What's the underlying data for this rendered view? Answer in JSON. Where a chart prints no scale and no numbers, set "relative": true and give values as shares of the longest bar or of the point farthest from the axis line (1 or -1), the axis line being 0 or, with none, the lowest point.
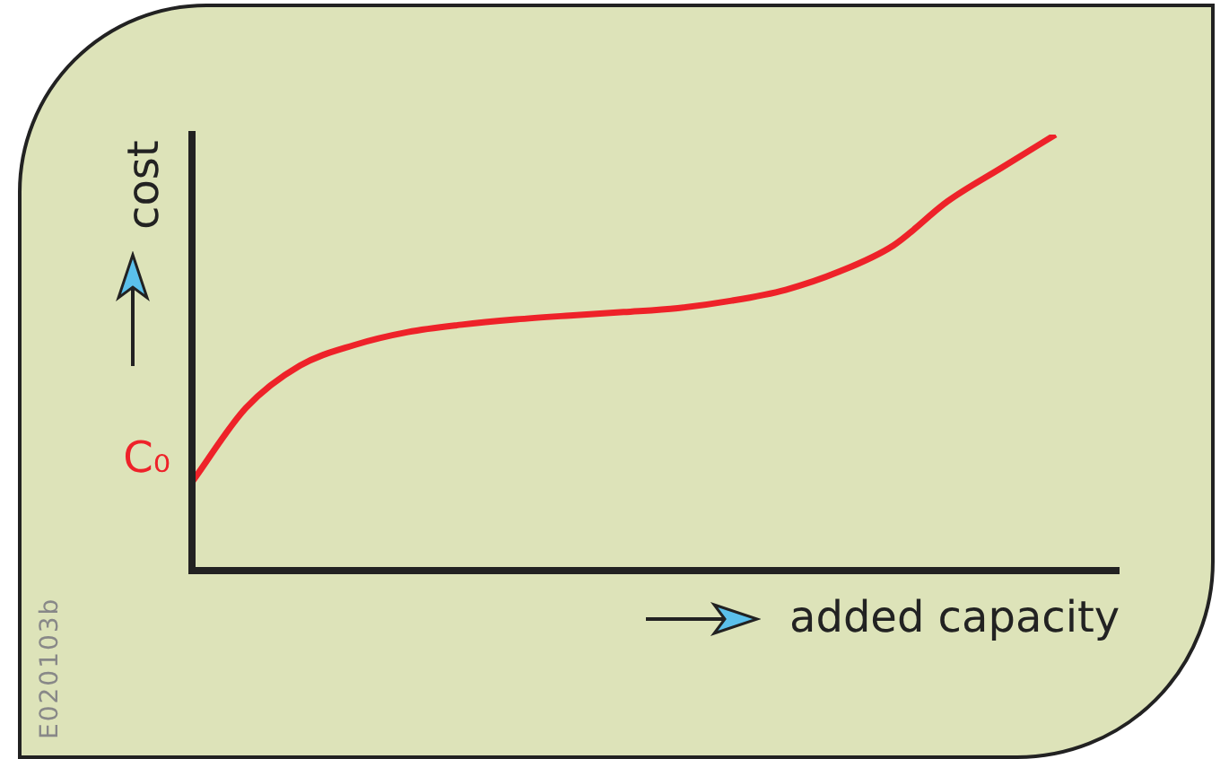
{
  "chart_data": {
    "type": "line",
    "relative": true,
    "xlabel": "added capacity",
    "ylabel": "cost",
    "legend": false,
    "marker": "none",
    "line_style": "solid",
    "categories": [
      null,
      null,
      null,
      null,
      null,
      null,
      null,
      null,
      null,
      null,
      null,
      null,
      null,
      null,
      null,
      null,
      null
    ],
    "series": [
      {
        "color": "#ee2229",
        "values": [
          0.203,
          0.373,
          0.47,
          0.517,
          0.547,
          0.564,
          0.576,
          0.585,
          0.593,
          0.602,
          0.619,
          0.644,
          0.686,
          0.746,
          0.847,
          0.924,
          1.0
        ]
      }
    ],
    "annotations": [
      "C₀",
      "E020103b"
    ]
  }
}
